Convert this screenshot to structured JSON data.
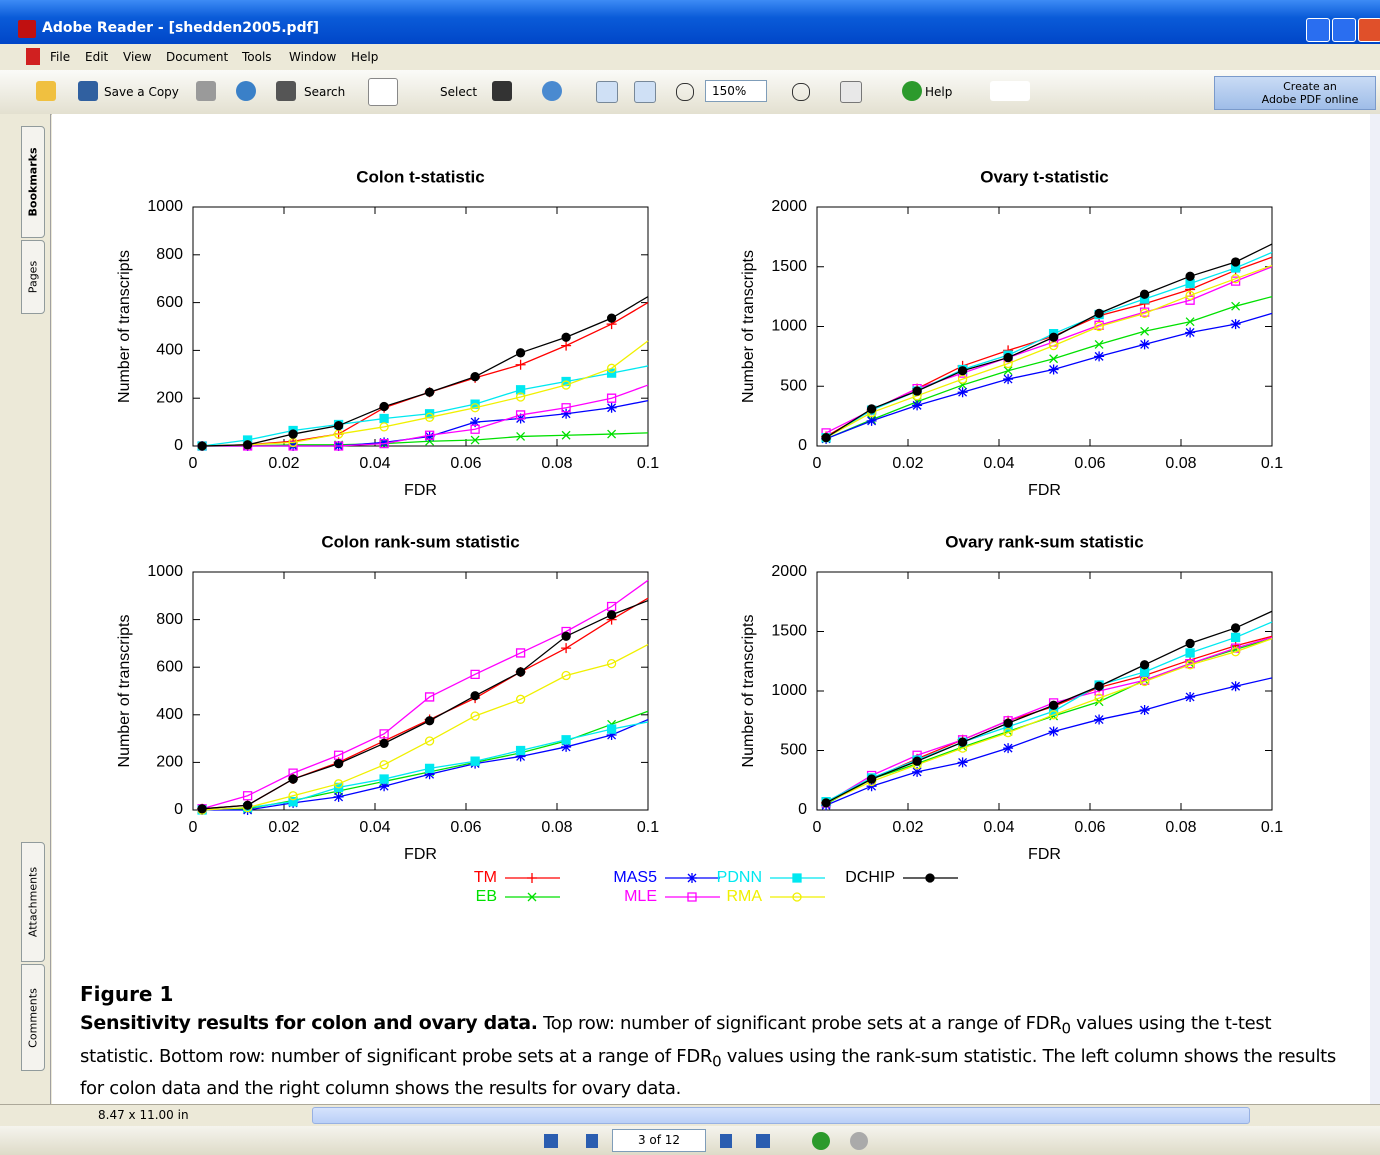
{
  "window": {
    "title": "Adobe Reader - [shedden2005.pdf]"
  },
  "menu": [
    "File",
    "Edit",
    "View",
    "Document",
    "Tools",
    "Window",
    "Help"
  ],
  "toolbar": {
    "save_copy": "Save a Copy",
    "search": "Search",
    "select": "Select",
    "zoom": "150%",
    "help": "Help",
    "create_pdf": [
      "Create an",
      "Adobe PDF online"
    ]
  },
  "side_tabs": [
    "Bookmarks",
    "Pages",
    "Attachments",
    "Comments"
  ],
  "status": {
    "page_size": "8.47 x 11.00 in",
    "page": "3 of 12"
  },
  "caption": {
    "label": "Figure 1",
    "heading": "Sensitivity results for colon and ovary data.",
    "text": [
      " Top row: number of significant probe sets at a range of FDR",
      "0",
      " values using the t-test statistic. Bottom row: number of significant probe sets at a range of FDR",
      "0",
      " values using the rank-sum statistic. The left column shows the results for colon data and the right column shows the results for ovary data."
    ]
  },
  "chart_data": [
    {
      "type": "line",
      "title": "Colon t-statistic",
      "xlabel": "FDR",
      "ylabel": "Number of transcripts",
      "x": [
        0.002,
        0.012,
        0.022,
        0.032,
        0.042,
        0.052,
        0.062,
        0.072,
        0.082,
        0.092,
        0.1
      ],
      "xlim": [
        0,
        0.1
      ],
      "xticks": [
        0,
        0.02,
        0.04,
        0.06,
        0.08,
        0.1
      ],
      "ylim": [
        0,
        1000
      ],
      "yticks": [
        0,
        200,
        400,
        600,
        800,
        1000
      ],
      "series": [
        {
          "name": "TM",
          "color": "#ff0000",
          "marker": "plus",
          "values": [
            0,
            5,
            20,
            50,
            160,
            225,
            285,
            340,
            420,
            510,
            600
          ]
        },
        {
          "name": "EB",
          "color": "#00e000",
          "marker": "cross",
          "values": [
            0,
            0,
            5,
            5,
            10,
            20,
            25,
            40,
            45,
            50,
            55
          ]
        },
        {
          "name": "MAS5",
          "color": "#0000ff",
          "marker": "star",
          "values": [
            0,
            0,
            0,
            0,
            15,
            40,
            100,
            115,
            135,
            160,
            190
          ]
        },
        {
          "name": "MLE",
          "color": "#ff00ff",
          "marker": "square-open",
          "values": [
            0,
            0,
            0,
            0,
            10,
            45,
            70,
            130,
            160,
            200,
            255
          ]
        },
        {
          "name": "PDNN",
          "color": "#00e8f0",
          "marker": "square",
          "values": [
            0,
            25,
            65,
            90,
            115,
            135,
            175,
            235,
            270,
            305,
            335
          ]
        },
        {
          "name": "RMA",
          "color": "#f0f000",
          "marker": "circle-open",
          "values": [
            0,
            5,
            15,
            50,
            80,
            120,
            160,
            205,
            255,
            325,
            440
          ]
        },
        {
          "name": "DCHIP",
          "color": "#000000",
          "marker": "circle",
          "values": [
            0,
            5,
            50,
            85,
            165,
            225,
            290,
            390,
            455,
            535,
            625
          ]
        }
      ]
    },
    {
      "type": "line",
      "title": "Ovary t-statistic",
      "xlabel": "FDR",
      "ylabel": "Number of transcripts",
      "x": [
        0.002,
        0.012,
        0.022,
        0.032,
        0.042,
        0.052,
        0.062,
        0.072,
        0.082,
        0.092,
        0.1
      ],
      "xlim": [
        0,
        0.1
      ],
      "xticks": [
        0,
        0.02,
        0.04,
        0.06,
        0.08,
        0.1
      ],
      "ylim": [
        0,
        2000
      ],
      "yticks": [
        0,
        500,
        1000,
        1500,
        2000
      ],
      "series": [
        {
          "name": "TM",
          "color": "#ff0000",
          "marker": "plus",
          "values": [
            80,
            300,
            480,
            670,
            800,
            920,
            1090,
            1190,
            1310,
            1470,
            1580
          ]
        },
        {
          "name": "EB",
          "color": "#00e000",
          "marker": "cross",
          "values": [
            60,
            220,
            370,
            510,
            630,
            730,
            850,
            960,
            1040,
            1170,
            1250
          ]
        },
        {
          "name": "MAS5",
          "color": "#0000ff",
          "marker": "star",
          "values": [
            60,
            210,
            340,
            450,
            560,
            640,
            750,
            850,
            950,
            1020,
            1110
          ]
        },
        {
          "name": "MLE",
          "color": "#ff00ff",
          "marker": "square-open",
          "values": [
            110,
            300,
            480,
            610,
            740,
            870,
            1010,
            1120,
            1220,
            1380,
            1500
          ]
        },
        {
          "name": "PDNN",
          "color": "#00e8f0",
          "marker": "square",
          "values": [
            70,
            300,
            460,
            640,
            760,
            940,
            1100,
            1230,
            1360,
            1490,
            1620
          ]
        },
        {
          "name": "RMA",
          "color": "#f0f000",
          "marker": "circle-open",
          "values": [
            70,
            280,
            420,
            560,
            690,
            840,
            1000,
            1110,
            1260,
            1400,
            1510
          ]
        },
        {
          "name": "DCHIP",
          "color": "#000000",
          "marker": "circle",
          "values": [
            70,
            310,
            460,
            630,
            740,
            910,
            1110,
            1270,
            1420,
            1540,
            1690
          ]
        }
      ]
    },
    {
      "type": "line",
      "title": "Colon rank-sum statistic",
      "xlabel": "FDR",
      "ylabel": "Number of transcripts",
      "x": [
        0.002,
        0.012,
        0.022,
        0.032,
        0.042,
        0.052,
        0.062,
        0.072,
        0.082,
        0.092,
        0.1
      ],
      "xlim": [
        0,
        0.1
      ],
      "xticks": [
        0,
        0.02,
        0.04,
        0.06,
        0.08,
        0.1
      ],
      "ylim": [
        0,
        1000
      ],
      "yticks": [
        0,
        200,
        400,
        600,
        800,
        1000
      ],
      "series": [
        {
          "name": "TM",
          "color": "#ff0000",
          "marker": "plus",
          "values": [
            5,
            20,
            130,
            200,
            290,
            380,
            470,
            580,
            680,
            800,
            890
          ]
        },
        {
          "name": "EB",
          "color": "#00e000",
          "marker": "cross",
          "values": [
            0,
            5,
            40,
            80,
            120,
            160,
            200,
            240,
            290,
            360,
            415
          ]
        },
        {
          "name": "MAS5",
          "color": "#0000ff",
          "marker": "star",
          "values": [
            0,
            0,
            30,
            55,
            100,
            150,
            195,
            225,
            265,
            315,
            380
          ]
        },
        {
          "name": "MLE",
          "color": "#ff00ff",
          "marker": "square-open",
          "values": [
            5,
            60,
            155,
            230,
            320,
            475,
            570,
            660,
            750,
            855,
            965
          ]
        },
        {
          "name": "PDNN",
          "color": "#00e8f0",
          "marker": "square",
          "values": [
            0,
            10,
            35,
            95,
            130,
            175,
            205,
            250,
            295,
            340,
            370
          ]
        },
        {
          "name": "RMA",
          "color": "#f0f000",
          "marker": "circle-open",
          "values": [
            0,
            10,
            60,
            110,
            190,
            290,
            395,
            465,
            565,
            615,
            695
          ]
        },
        {
          "name": "DCHIP",
          "color": "#000000",
          "marker": "circle",
          "values": [
            5,
            20,
            130,
            195,
            280,
            375,
            480,
            580,
            730,
            820,
            880
          ]
        }
      ]
    },
    {
      "type": "line",
      "title": "Ovary rank-sum statistic",
      "xlabel": "FDR",
      "ylabel": "Number of transcripts",
      "x": [
        0.002,
        0.012,
        0.022,
        0.032,
        0.042,
        0.052,
        0.062,
        0.072,
        0.082,
        0.092,
        0.1
      ],
      "xlim": [
        0,
        0.1
      ],
      "xticks": [
        0,
        0.02,
        0.04,
        0.06,
        0.08,
        0.1
      ],
      "ylim": [
        0,
        2000
      ],
      "yticks": [
        0,
        500,
        1000,
        1500,
        2000
      ],
      "series": [
        {
          "name": "TM",
          "color": "#ff0000",
          "marker": "plus",
          "values": [
            60,
            260,
            430,
            590,
            750,
            870,
            1030,
            1130,
            1260,
            1380,
            1460
          ]
        },
        {
          "name": "EB",
          "color": "#00e000",
          "marker": "cross",
          "values": [
            50,
            260,
            390,
            530,
            660,
            790,
            910,
            1090,
            1230,
            1350,
            1440
          ]
        },
        {
          "name": "MAS5",
          "color": "#0000ff",
          "marker": "star",
          "values": [
            40,
            200,
            320,
            400,
            520,
            660,
            760,
            840,
            950,
            1040,
            1110
          ]
        },
        {
          "name": "MLE",
          "color": "#ff00ff",
          "marker": "square-open",
          "values": [
            60,
            290,
            460,
            590,
            750,
            900,
            1000,
            1090,
            1230,
            1360,
            1450
          ]
        },
        {
          "name": "PDNN",
          "color": "#00e8f0",
          "marker": "square",
          "values": [
            70,
            270,
            420,
            570,
            700,
            830,
            1050,
            1160,
            1320,
            1450,
            1580
          ]
        },
        {
          "name": "RMA",
          "color": "#f0f000",
          "marker": "circle-open",
          "values": [
            60,
            240,
            380,
            520,
            650,
            800,
            940,
            1080,
            1220,
            1330,
            1440
          ]
        },
        {
          "name": "DCHIP",
          "color": "#000000",
          "marker": "circle",
          "values": [
            60,
            260,
            410,
            570,
            730,
            880,
            1040,
            1220,
            1400,
            1530,
            1670
          ]
        }
      ]
    }
  ]
}
